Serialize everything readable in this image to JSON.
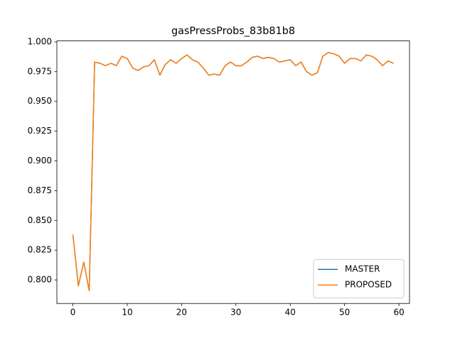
{
  "chart_data": {
    "type": "line",
    "title": "gasPressProbs_83b81b8",
    "x": [
      0,
      1,
      2,
      3,
      4,
      5,
      6,
      7,
      8,
      9,
      10,
      11,
      12,
      13,
      14,
      15,
      16,
      17,
      18,
      19,
      20,
      21,
      22,
      23,
      24,
      25,
      26,
      27,
      28,
      29,
      30,
      31,
      32,
      33,
      34,
      35,
      36,
      37,
      38,
      39,
      40,
      41,
      42,
      43,
      44,
      45,
      46,
      47,
      48,
      49,
      50,
      51,
      52,
      53,
      54,
      55,
      56,
      57,
      58,
      59
    ],
    "series": [
      {
        "name": "MASTER",
        "color": "#1f77b4",
        "values": [
          0.838,
          0.795,
          0.815,
          0.791,
          0.983,
          0.982,
          0.98,
          0.982,
          0.98,
          0.988,
          0.986,
          0.978,
          0.976,
          0.979,
          0.98,
          0.985,
          0.972,
          0.981,
          0.985,
          0.982,
          0.986,
          0.989,
          0.985,
          0.983,
          0.978,
          0.972,
          0.973,
          0.972,
          0.98,
          0.983,
          0.98,
          0.98,
          0.983,
          0.987,
          0.988,
          0.986,
          0.987,
          0.986,
          0.983,
          0.984,
          0.985,
          0.98,
          0.983,
          0.975,
          0.972,
          0.974,
          0.988,
          0.991,
          0.99,
          0.988,
          0.982,
          0.986,
          0.986,
          0.984,
          0.989,
          0.988,
          0.985,
          0.98,
          0.984,
          0.982
        ]
      },
      {
        "name": "PROPOSED",
        "color": "#ff7f0e",
        "values": [
          0.838,
          0.795,
          0.815,
          0.791,
          0.983,
          0.982,
          0.98,
          0.982,
          0.98,
          0.988,
          0.986,
          0.978,
          0.976,
          0.979,
          0.98,
          0.985,
          0.972,
          0.981,
          0.985,
          0.982,
          0.986,
          0.989,
          0.985,
          0.983,
          0.978,
          0.972,
          0.973,
          0.972,
          0.98,
          0.983,
          0.98,
          0.98,
          0.983,
          0.987,
          0.988,
          0.986,
          0.987,
          0.986,
          0.983,
          0.984,
          0.985,
          0.98,
          0.983,
          0.975,
          0.972,
          0.974,
          0.988,
          0.991,
          0.99,
          0.988,
          0.982,
          0.986,
          0.986,
          0.984,
          0.989,
          0.988,
          0.985,
          0.98,
          0.984,
          0.982
        ]
      }
    ],
    "xlim": [
      -2.95,
      61.95
    ],
    "xticks": [
      0,
      10,
      20,
      30,
      40,
      50,
      60
    ],
    "ylim": [
      0.7802,
      1.0008
    ],
    "yticks": [
      {
        "value": 0.8,
        "label": "0.800"
      },
      {
        "value": 0.825,
        "label": "0.825"
      },
      {
        "value": 0.85,
        "label": "0.850"
      },
      {
        "value": 0.875,
        "label": "0.875"
      },
      {
        "value": 0.9,
        "label": "0.900"
      },
      {
        "value": 0.925,
        "label": "0.925"
      },
      {
        "value": 0.95,
        "label": "0.950"
      },
      {
        "value": 0.975,
        "label": "0.975"
      },
      {
        "value": 1.0,
        "label": "1.000"
      }
    ],
    "grid": false,
    "legend": "lower right"
  }
}
